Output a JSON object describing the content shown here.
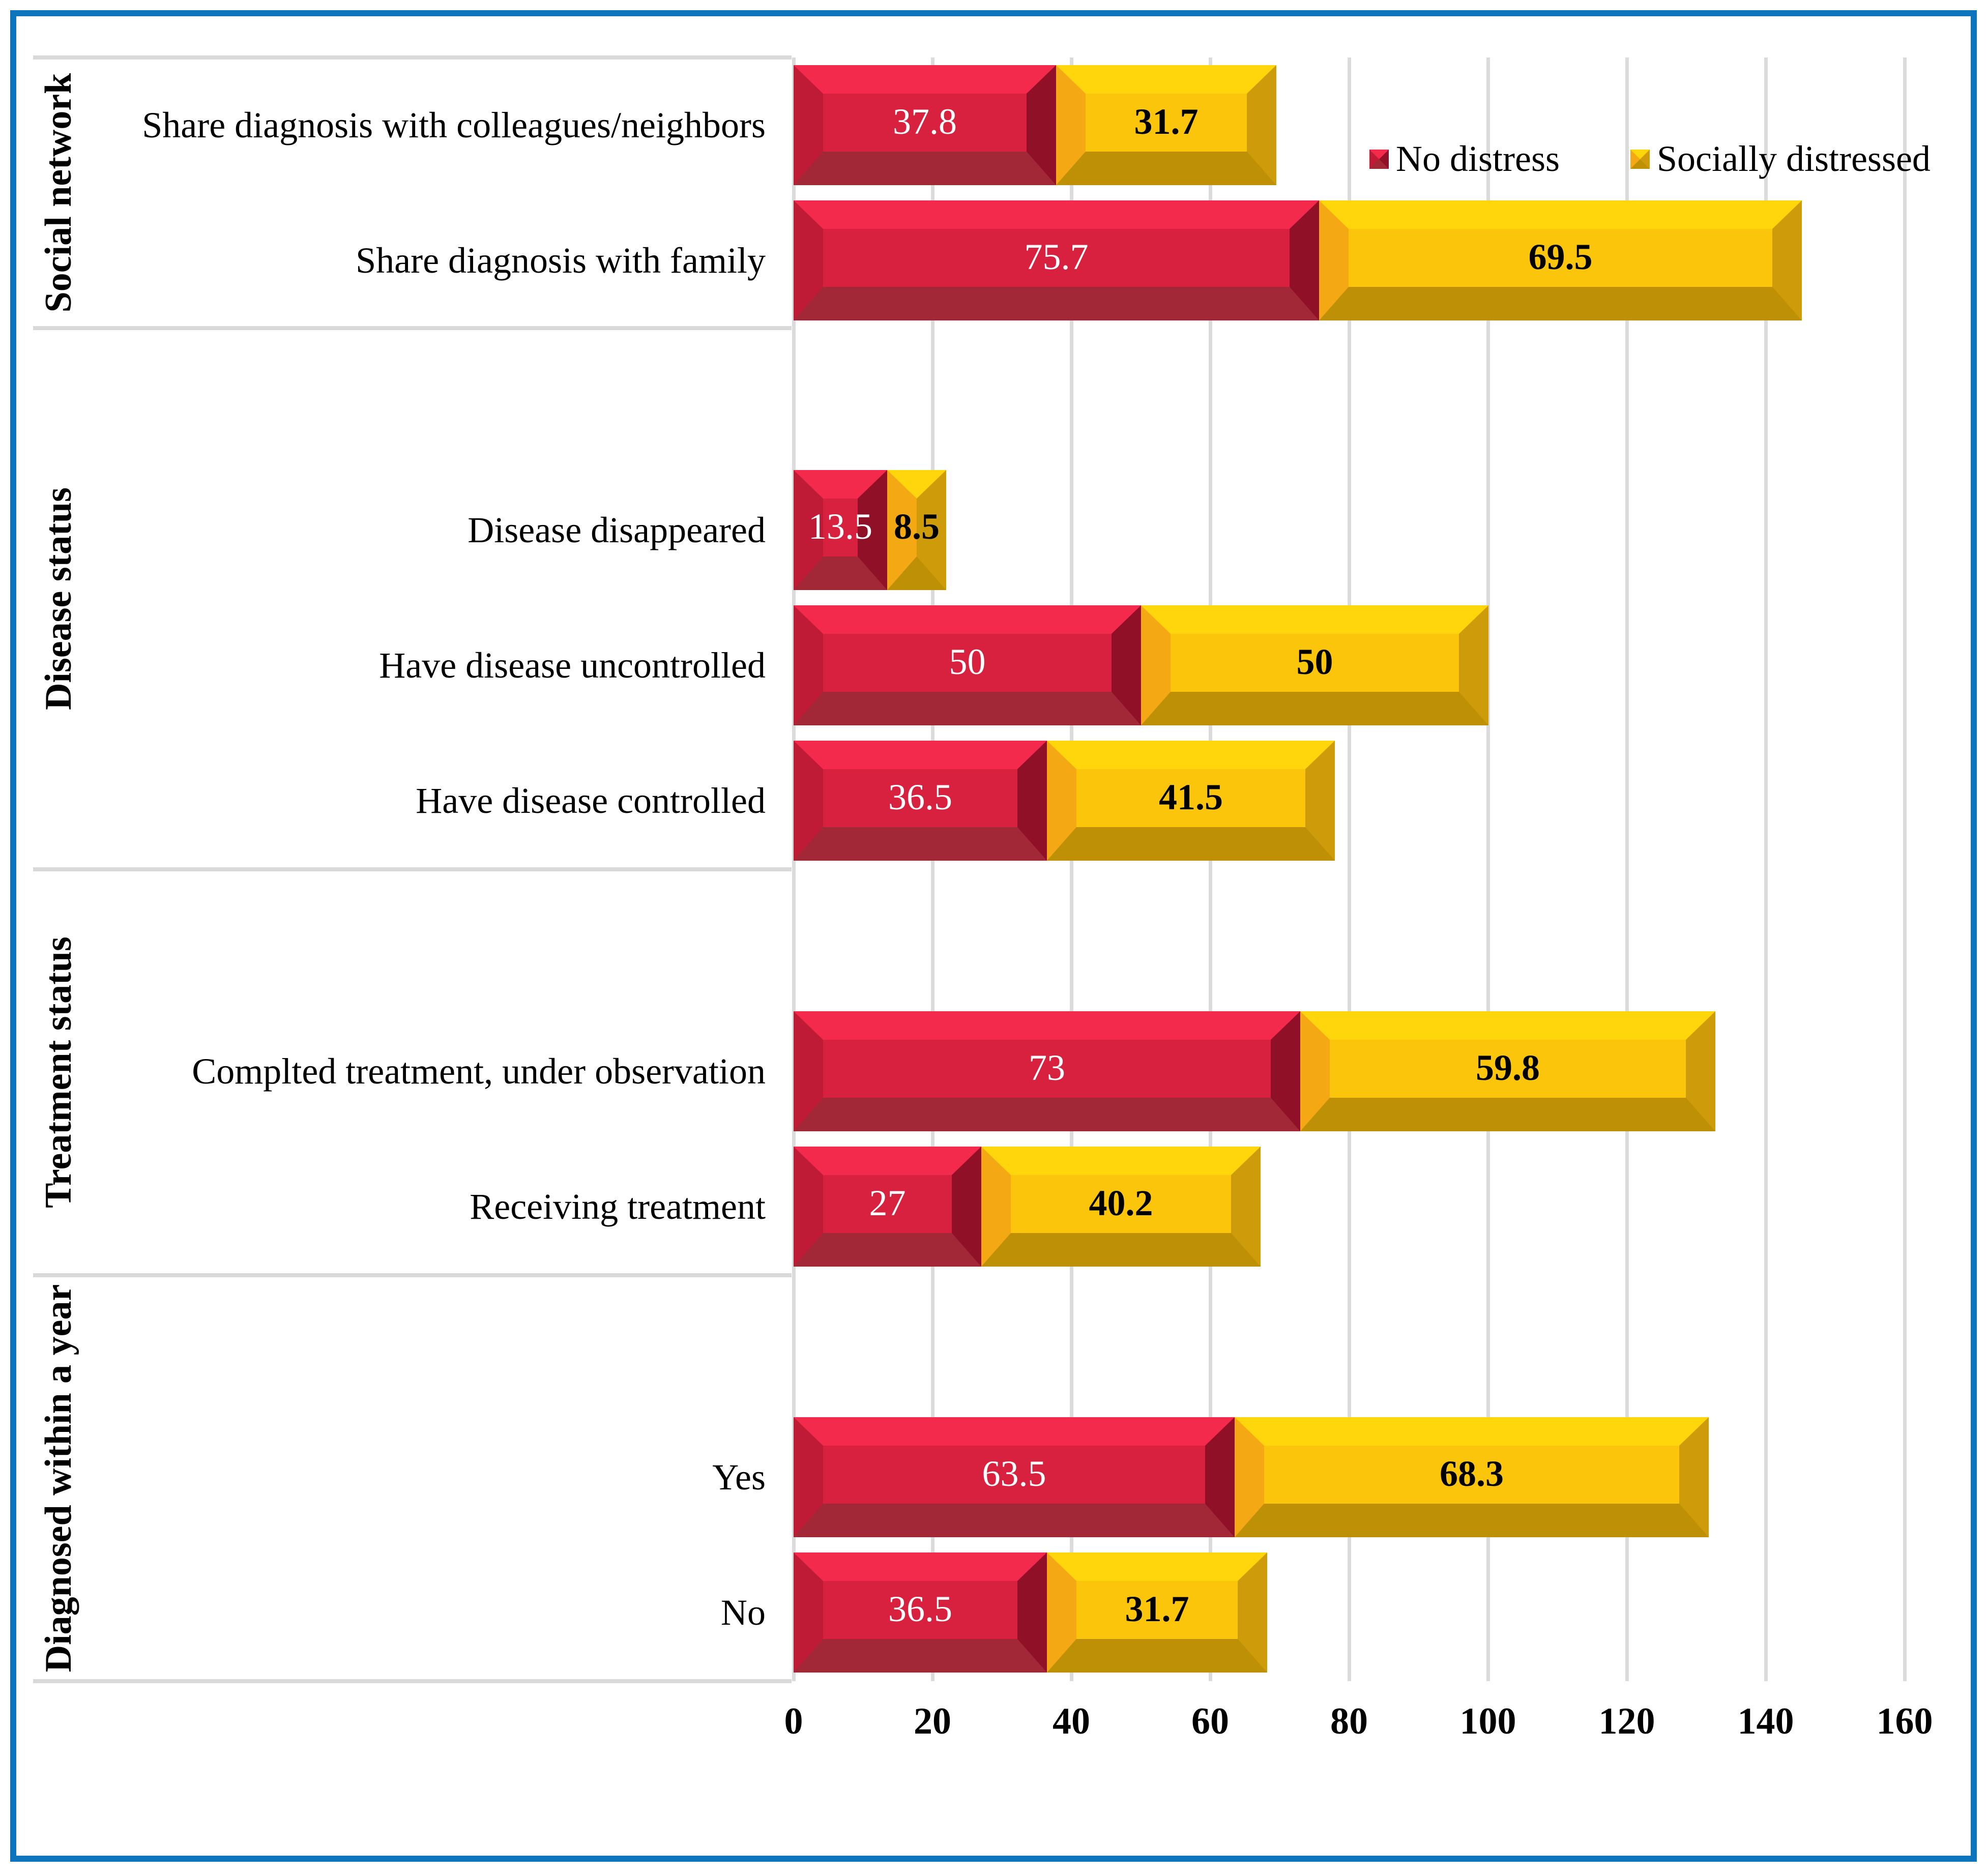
{
  "chart_data": {
    "type": "bar",
    "orientation": "horizontal-stacked",
    "title": "",
    "xlabel": "",
    "ylabel": "",
    "xlim": [
      0,
      160
    ],
    "x_ticks": [
      "0",
      "20",
      "40",
      "60",
      "80",
      "100",
      "120",
      "140",
      "160"
    ],
    "grid": true,
    "legend_position": "top-right",
    "series_names": [
      "No distress",
      "Socially distressed"
    ],
    "groups": [
      {
        "label": "Social network",
        "items": [
          {
            "label": "Share diagnosis with colleagues/neighbors",
            "no_distress": 37.8,
            "socially_distressed": 31.7
          },
          {
            "label": "Share diagnosis with family",
            "no_distress": 75.7,
            "socially_distressed": 69.5
          }
        ]
      },
      {
        "label": "Disease status",
        "items": [
          {
            "label": "Disease disappeared",
            "no_distress": 13.5,
            "socially_distressed": 8.5
          },
          {
            "label": "Have disease uncontrolled",
            "no_distress": 50,
            "socially_distressed": 50
          },
          {
            "label": "Have disease controlled",
            "no_distress": 36.5,
            "socially_distressed": 41.5
          }
        ]
      },
      {
        "label": "Treatment status",
        "items": [
          {
            "label": "Complted treatment, under observation",
            "no_distress": 73,
            "socially_distressed": 59.8
          },
          {
            "label": "Receiving treatment",
            "no_distress": 27,
            "socially_distressed": 40.2
          }
        ]
      },
      {
        "label": "Diagnosed within a year",
        "items": [
          {
            "label": "Yes",
            "no_distress": 63.5,
            "socially_distressed": 68.3
          },
          {
            "label": "No",
            "no_distress": 36.5,
            "socially_distressed": 31.7
          }
        ]
      }
    ]
  },
  "legend": {
    "no_distress_label": "No distress",
    "socially_distressed_label": "Socially distressed"
  },
  "colors": {
    "frame_blue": "#0E75BD",
    "grid_gray": "#DBDBDB",
    "sep_gray": "#D9D9D9",
    "red_face": "#D8203F",
    "red_top": "#F42A4C",
    "red_left": "#BF1B37",
    "red_right": "#8F1027",
    "red_bottom": "#A32837",
    "red_value_text": "#FFFFFF",
    "yellow_face": "#FBC50C",
    "yellow_top": "#FFD60C",
    "yellow_left": "#F3A814",
    "yellow_right": "#CE9B0B",
    "yellow_bottom": "#BD9005",
    "yellow_value_text": "#000000"
  }
}
